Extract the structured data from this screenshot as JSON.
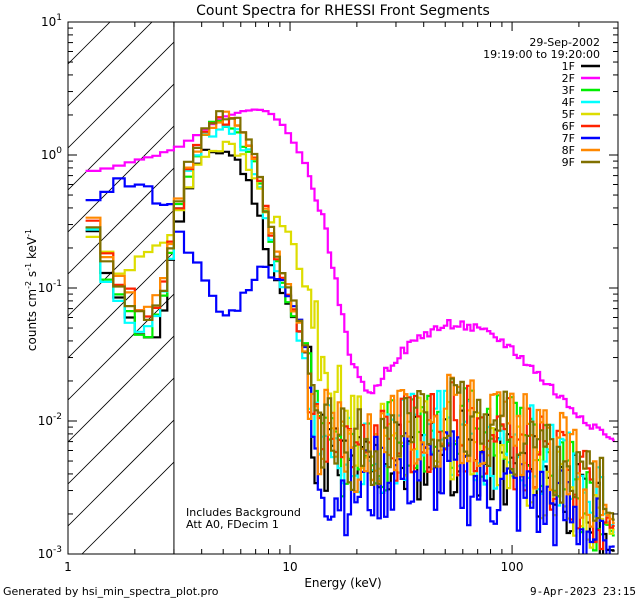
{
  "chart_data": {
    "type": "line",
    "title": "Count Spectra for RHESSI Front Segments",
    "xlabel": "Energy (keV)",
    "ylabel_parts": {
      "a": "counts cm",
      "b": "-2",
      "c": " s",
      "d": "-1",
      "e": " keV",
      "f": "-1"
    },
    "x_scale": "log",
    "y_scale": "log",
    "xlim": [
      1,
      300
    ],
    "ylim": [
      0.001,
      10
    ],
    "x_ticks": [
      {
        "value": 1,
        "label": "1"
      },
      {
        "value": 10,
        "label": "10"
      },
      {
        "value": 100,
        "label": "100"
      }
    ],
    "y_ticks": [
      {
        "value": 0.001,
        "base": "10",
        "exp": "-3"
      },
      {
        "value": 0.01,
        "base": "10",
        "exp": "-2"
      },
      {
        "value": 0.1,
        "base": "10",
        "exp": "-1"
      },
      {
        "value": 1,
        "base": "10",
        "exp": "0"
      },
      {
        "value": 10,
        "base": "10",
        "exp": "1"
      }
    ],
    "date": "29-Sep-2002",
    "time_range": "19:19:00 to 19:20:00",
    "excluded_region": {
      "from": 1,
      "to": 3,
      "pattern": "hatched"
    },
    "annotations": [
      "Includes Background",
      "Att A0, FDecim 1"
    ],
    "series": [
      {
        "name": "1F",
        "color": "#000000",
        "keys": [
          [
            1.2,
            0.5
          ],
          [
            1.4,
            0.14
          ],
          [
            1.6,
            0.1
          ],
          [
            1.8,
            0.08
          ],
          [
            2.0,
            0.055
          ],
          [
            2.2,
            0.042
          ],
          [
            2.4,
            0.038
          ],
          [
            2.6,
            0.055
          ],
          [
            2.8,
            0.09
          ],
          [
            3.0,
            0.25
          ],
          [
            3.5,
            0.55
          ],
          [
            4.0,
            0.95
          ],
          [
            4.5,
            1.05
          ],
          [
            5.0,
            1.1
          ],
          [
            5.5,
            1.0
          ],
          [
            6.0,
            0.85
          ],
          [
            7.0,
            0.45
          ],
          [
            8.0,
            0.18
          ],
          [
            9.0,
            0.1
          ],
          [
            10.0,
            0.07
          ],
          [
            11.0,
            0.045
          ],
          [
            12.0,
            0.03
          ],
          [
            13.0,
            0.007
          ],
          [
            16.0,
            0.005
          ],
          [
            20.0,
            0.004
          ],
          [
            30.0,
            0.005
          ],
          [
            50.0,
            0.006
          ],
          [
            80.0,
            0.005
          ],
          [
            120.0,
            0.004
          ],
          [
            180.0,
            0.003
          ],
          [
            250.0,
            0.0015
          ],
          [
            290.0,
            0.001
          ]
        ],
        "noise": 0.35,
        "seed": 11
      },
      {
        "name": "2F",
        "color": "#ff00ff",
        "keys": [
          [
            1.2,
            0.75
          ],
          [
            1.5,
            0.8
          ],
          [
            2.0,
            0.9
          ],
          [
            2.5,
            1.0
          ],
          [
            3.0,
            1.1
          ],
          [
            3.5,
            1.3
          ],
          [
            4.0,
            1.5
          ],
          [
            5.0,
            1.9
          ],
          [
            6.0,
            2.15
          ],
          [
            7.0,
            2.2
          ],
          [
            8.0,
            2.1
          ],
          [
            9.0,
            1.8
          ],
          [
            10.0,
            1.4
          ],
          [
            12.0,
            0.8
          ],
          [
            14.0,
            0.35
          ],
          [
            16.0,
            0.12
          ],
          [
            18.0,
            0.04
          ],
          [
            20.0,
            0.022
          ],
          [
            22.0,
            0.018
          ],
          [
            24.0,
            0.016
          ],
          [
            26.0,
            0.022
          ],
          [
            30.0,
            0.03
          ],
          [
            40.0,
            0.045
          ],
          [
            55.0,
            0.055
          ],
          [
            70.0,
            0.048
          ],
          [
            90.0,
            0.04
          ],
          [
            110.0,
            0.03
          ],
          [
            140.0,
            0.02
          ],
          [
            180.0,
            0.013
          ],
          [
            220.0,
            0.01
          ],
          [
            260.0,
            0.008
          ],
          [
            290.0,
            0.007
          ]
        ],
        "noise": 0.04,
        "seed": 22
      },
      {
        "name": "3F",
        "color": "#00ee00",
        "keys": [
          [
            1.2,
            0.55
          ],
          [
            1.4,
            0.15
          ],
          [
            1.6,
            0.1
          ],
          [
            1.8,
            0.07
          ],
          [
            2.0,
            0.055
          ],
          [
            2.2,
            0.045
          ],
          [
            2.4,
            0.048
          ],
          [
            2.6,
            0.07
          ],
          [
            2.8,
            0.12
          ],
          [
            3.0,
            0.28
          ],
          [
            3.5,
            0.7
          ],
          [
            4.0,
            1.3
          ],
          [
            4.5,
            1.6
          ],
          [
            5.0,
            1.8
          ],
          [
            5.5,
            1.7
          ],
          [
            6.0,
            1.4
          ],
          [
            7.0,
            0.8
          ],
          [
            8.0,
            0.3
          ],
          [
            9.0,
            0.12
          ],
          [
            10.0,
            0.08
          ],
          [
            11.0,
            0.05
          ],
          [
            12.0,
            0.03
          ],
          [
            13.0,
            0.008
          ],
          [
            16.0,
            0.006
          ],
          [
            20.0,
            0.005
          ],
          [
            30.0,
            0.007
          ],
          [
            50.0,
            0.01
          ],
          [
            80.0,
            0.008
          ],
          [
            120.0,
            0.006
          ],
          [
            180.0,
            0.004
          ],
          [
            250.0,
            0.002
          ],
          [
            290.0,
            0.0015
          ]
        ],
        "noise": 0.35,
        "seed": 33
      },
      {
        "name": "4F",
        "color": "#00ffff",
        "keys": [
          [
            1.2,
            0.45
          ],
          [
            1.4,
            0.14
          ],
          [
            1.6,
            0.09
          ],
          [
            1.8,
            0.07
          ],
          [
            2.0,
            0.05
          ],
          [
            2.2,
            0.045
          ],
          [
            2.4,
            0.05
          ],
          [
            2.6,
            0.07
          ],
          [
            2.8,
            0.11
          ],
          [
            3.0,
            0.27
          ],
          [
            3.5,
            0.7
          ],
          [
            4.0,
            1.25
          ],
          [
            4.5,
            1.5
          ],
          [
            5.0,
            1.65
          ],
          [
            5.5,
            1.6
          ],
          [
            6.0,
            1.35
          ],
          [
            7.0,
            0.75
          ],
          [
            8.0,
            0.28
          ],
          [
            9.0,
            0.11
          ],
          [
            10.0,
            0.075
          ],
          [
            11.0,
            0.045
          ],
          [
            12.0,
            0.028
          ],
          [
            13.0,
            0.007
          ],
          [
            16.0,
            0.006
          ],
          [
            20.0,
            0.005
          ],
          [
            30.0,
            0.007
          ],
          [
            50.0,
            0.009
          ],
          [
            80.0,
            0.007
          ],
          [
            120.0,
            0.006
          ],
          [
            180.0,
            0.004
          ],
          [
            250.0,
            0.002
          ],
          [
            290.0,
            0.0015
          ]
        ],
        "noise": 0.35,
        "seed": 44
      },
      {
        "name": "5F",
        "color": "#dddd00",
        "keys": [
          [
            1.2,
            0.28
          ],
          [
            1.4,
            0.22
          ],
          [
            1.6,
            0.15
          ],
          [
            1.8,
            0.12
          ],
          [
            2.0,
            0.15
          ],
          [
            2.2,
            0.17
          ],
          [
            2.4,
            0.2
          ],
          [
            2.6,
            0.22
          ],
          [
            2.8,
            0.24
          ],
          [
            3.0,
            0.3
          ],
          [
            3.5,
            0.6
          ],
          [
            4.0,
            1.0
          ],
          [
            4.5,
            1.1
          ],
          [
            5.0,
            1.2
          ],
          [
            5.5,
            1.1
          ],
          [
            6.0,
            1.0
          ],
          [
            7.0,
            0.65
          ],
          [
            8.0,
            0.35
          ],
          [
            9.0,
            0.3
          ],
          [
            10.0,
            0.25
          ],
          [
            11.0,
            0.15
          ],
          [
            12.0,
            0.09
          ],
          [
            13.0,
            0.05
          ],
          [
            15.0,
            0.02
          ],
          [
            18.0,
            0.01
          ],
          [
            25.0,
            0.007
          ],
          [
            40.0,
            0.008
          ],
          [
            60.0,
            0.007
          ],
          [
            100.0,
            0.005
          ],
          [
            160.0,
            0.003
          ],
          [
            230.0,
            0.002
          ],
          [
            290.0,
            0.0015
          ]
        ],
        "noise": 0.3,
        "seed": 55
      },
      {
        "name": "6F",
        "color": "#ff2200",
        "keys": [
          [
            1.2,
            0.45
          ],
          [
            1.4,
            0.2
          ],
          [
            1.6,
            0.14
          ],
          [
            1.8,
            0.1
          ],
          [
            2.0,
            0.08
          ],
          [
            2.2,
            0.065
          ],
          [
            2.4,
            0.065
          ],
          [
            2.6,
            0.085
          ],
          [
            2.8,
            0.13
          ],
          [
            3.0,
            0.3
          ],
          [
            3.5,
            0.75
          ],
          [
            4.0,
            1.4
          ],
          [
            4.5,
            1.7
          ],
          [
            5.0,
            1.85
          ],
          [
            5.5,
            1.75
          ],
          [
            6.0,
            1.5
          ],
          [
            7.0,
            0.85
          ],
          [
            8.0,
            0.3
          ],
          [
            9.0,
            0.13
          ],
          [
            10.0,
            0.085
          ],
          [
            11.0,
            0.05
          ],
          [
            12.0,
            0.03
          ],
          [
            13.0,
            0.008
          ],
          [
            16.0,
            0.006
          ],
          [
            20.0,
            0.005
          ],
          [
            30.0,
            0.007
          ],
          [
            50.0,
            0.009
          ],
          [
            80.0,
            0.008
          ],
          [
            120.0,
            0.006
          ],
          [
            180.0,
            0.004
          ],
          [
            250.0,
            0.002
          ],
          [
            290.0,
            0.0015
          ]
        ],
        "noise": 0.35,
        "seed": 66
      },
      {
        "name": "7F",
        "color": "#0000ff",
        "keys": [
          [
            1.2,
            0.42
          ],
          [
            1.4,
            0.55
          ],
          [
            1.6,
            0.62
          ],
          [
            1.8,
            0.62
          ],
          [
            2.0,
            0.6
          ],
          [
            2.2,
            0.55
          ],
          [
            2.4,
            0.5
          ],
          [
            2.6,
            0.45
          ],
          [
            2.8,
            0.45
          ],
          [
            3.0,
            0.35
          ],
          [
            3.5,
            0.2
          ],
          [
            4.0,
            0.12
          ],
          [
            4.5,
            0.08
          ],
          [
            5.0,
            0.06
          ],
          [
            5.5,
            0.065
          ],
          [
            6.0,
            0.08
          ],
          [
            7.0,
            0.13
          ],
          [
            8.0,
            0.14
          ],
          [
            9.0,
            0.12
          ],
          [
            10.0,
            0.09
          ],
          [
            11.0,
            0.06
          ],
          [
            12.0,
            0.025
          ],
          [
            13.0,
            0.004
          ],
          [
            16.0,
            0.003
          ],
          [
            20.0,
            0.003
          ],
          [
            30.0,
            0.004
          ],
          [
            50.0,
            0.004
          ],
          [
            80.0,
            0.003
          ],
          [
            120.0,
            0.0025
          ],
          [
            180.0,
            0.002
          ],
          [
            250.0,
            0.0012
          ],
          [
            290.0,
            0.001
          ]
        ],
        "noise": 0.35,
        "seed": 77
      },
      {
        "name": "8F",
        "color": "#ff8800",
        "keys": [
          [
            1.2,
            0.48
          ],
          [
            1.4,
            0.22
          ],
          [
            1.6,
            0.15
          ],
          [
            1.8,
            0.1
          ],
          [
            2.0,
            0.08
          ],
          [
            2.2,
            0.07
          ],
          [
            2.4,
            0.07
          ],
          [
            2.6,
            0.09
          ],
          [
            2.8,
            0.14
          ],
          [
            3.0,
            0.3
          ],
          [
            3.5,
            0.8
          ],
          [
            4.0,
            1.45
          ],
          [
            4.5,
            1.8
          ],
          [
            5.0,
            1.95
          ],
          [
            5.5,
            1.85
          ],
          [
            6.0,
            1.55
          ],
          [
            7.0,
            0.9
          ],
          [
            8.0,
            0.32
          ],
          [
            9.0,
            0.14
          ],
          [
            10.0,
            0.09
          ],
          [
            11.0,
            0.055
          ],
          [
            12.0,
            0.03
          ],
          [
            13.0,
            0.009
          ],
          [
            16.0,
            0.007
          ],
          [
            20.0,
            0.006
          ],
          [
            30.0,
            0.008
          ],
          [
            50.0,
            0.01
          ],
          [
            80.0,
            0.009
          ],
          [
            120.0,
            0.007
          ],
          [
            180.0,
            0.005
          ],
          [
            250.0,
            0.0025
          ],
          [
            290.0,
            0.0018
          ]
        ],
        "noise": 0.35,
        "seed": 88
      },
      {
        "name": "9F",
        "color": "#807000",
        "keys": [
          [
            1.2,
            0.5
          ],
          [
            1.4,
            0.2
          ],
          [
            1.6,
            0.13
          ],
          [
            1.8,
            0.09
          ],
          [
            2.0,
            0.075
          ],
          [
            2.2,
            0.06
          ],
          [
            2.4,
            0.06
          ],
          [
            2.6,
            0.08
          ],
          [
            2.8,
            0.13
          ],
          [
            3.0,
            0.3
          ],
          [
            3.5,
            0.8
          ],
          [
            4.0,
            1.5
          ],
          [
            4.5,
            1.85
          ],
          [
            5.0,
            2.0
          ],
          [
            5.5,
            1.9
          ],
          [
            6.0,
            1.6
          ],
          [
            7.0,
            0.9
          ],
          [
            8.0,
            0.32
          ],
          [
            9.0,
            0.14
          ],
          [
            10.0,
            0.09
          ],
          [
            11.0,
            0.055
          ],
          [
            12.0,
            0.032
          ],
          [
            13.0,
            0.009
          ],
          [
            16.0,
            0.007
          ],
          [
            20.0,
            0.006
          ],
          [
            30.0,
            0.008
          ],
          [
            50.0,
            0.01
          ],
          [
            80.0,
            0.009
          ],
          [
            120.0,
            0.007
          ],
          [
            180.0,
            0.005
          ],
          [
            250.0,
            0.0025
          ],
          [
            290.0,
            0.0018
          ]
        ],
        "noise": 0.35,
        "seed": 99
      }
    ]
  },
  "footer": {
    "generated_by": "Generated by hsi_min_spectra_plot.pro",
    "timestamp": "9-Apr-2023 23:15"
  }
}
